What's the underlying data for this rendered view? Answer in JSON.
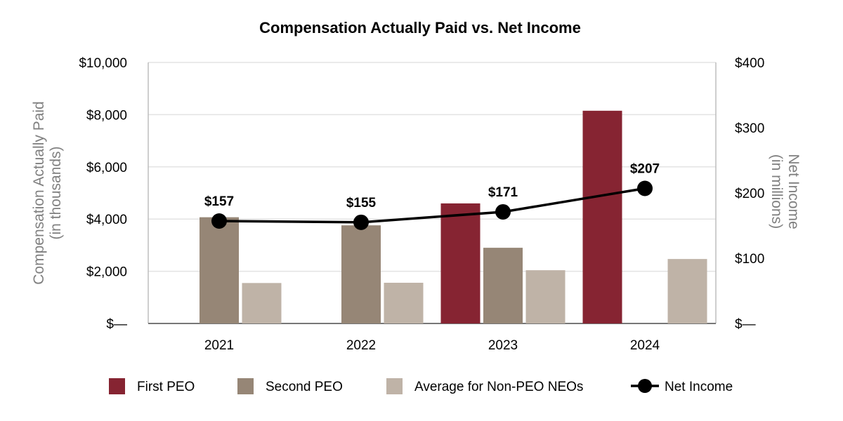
{
  "chart_data": {
    "type": "bar",
    "title": "Compensation Actually Paid vs. Net Income",
    "categories": [
      "2021",
      "2022",
      "2023",
      "2024"
    ],
    "left_axis": {
      "label_line1": "Compensation Actually Paid",
      "label_line2": "(in thousands)",
      "ylim": [
        0,
        10000
      ],
      "ticks": [
        {
          "value": 0,
          "label": "$—"
        },
        {
          "value": 2000,
          "label": "$2,000"
        },
        {
          "value": 4000,
          "label": "$4,000"
        },
        {
          "value": 6000,
          "label": "$6,000"
        },
        {
          "value": 8000,
          "label": "$8,000"
        },
        {
          "value": 10000,
          "label": "$10,000"
        }
      ]
    },
    "right_axis": {
      "label_line1": "Net Income",
      "label_line2": "(in millions)",
      "ylim": [
        0,
        400
      ],
      "ticks": [
        {
          "value": 0,
          "label": "$—"
        },
        {
          "value": 100,
          "label": "$100"
        },
        {
          "value": 200,
          "label": "$200"
        },
        {
          "value": 300,
          "label": "$300"
        },
        {
          "value": 400,
          "label": "$400"
        }
      ]
    },
    "series": [
      {
        "name": "First PEO",
        "kind": "bar",
        "color": "#862432",
        "values": [
          null,
          null,
          4600,
          8150
        ]
      },
      {
        "name": "Second PEO",
        "kind": "bar",
        "color": "#968676",
        "values": [
          4070,
          3760,
          2900,
          null
        ]
      },
      {
        "name": "Average for Non-PEO NEOs",
        "kind": "bar",
        "color": "#bfb3a7",
        "values": [
          1550,
          1560,
          2040,
          2470
        ]
      },
      {
        "name": "Net Income",
        "kind": "line",
        "axis": "right",
        "color": "#000000",
        "values": [
          157,
          155,
          171,
          207
        ],
        "labels": [
          "$157",
          "$155",
          "$171",
          "$207"
        ]
      }
    ],
    "legend": [
      {
        "name": "First PEO",
        "kind": "bar",
        "color": "#862432"
      },
      {
        "name": "Second PEO",
        "kind": "bar",
        "color": "#968676"
      },
      {
        "name": "Average for Non-PEO NEOs",
        "kind": "bar",
        "color": "#bfb3a7"
      },
      {
        "name": "Net Income",
        "kind": "line",
        "color": "#000000"
      }
    ],
    "legend_position": "bottom",
    "grid": true
  }
}
